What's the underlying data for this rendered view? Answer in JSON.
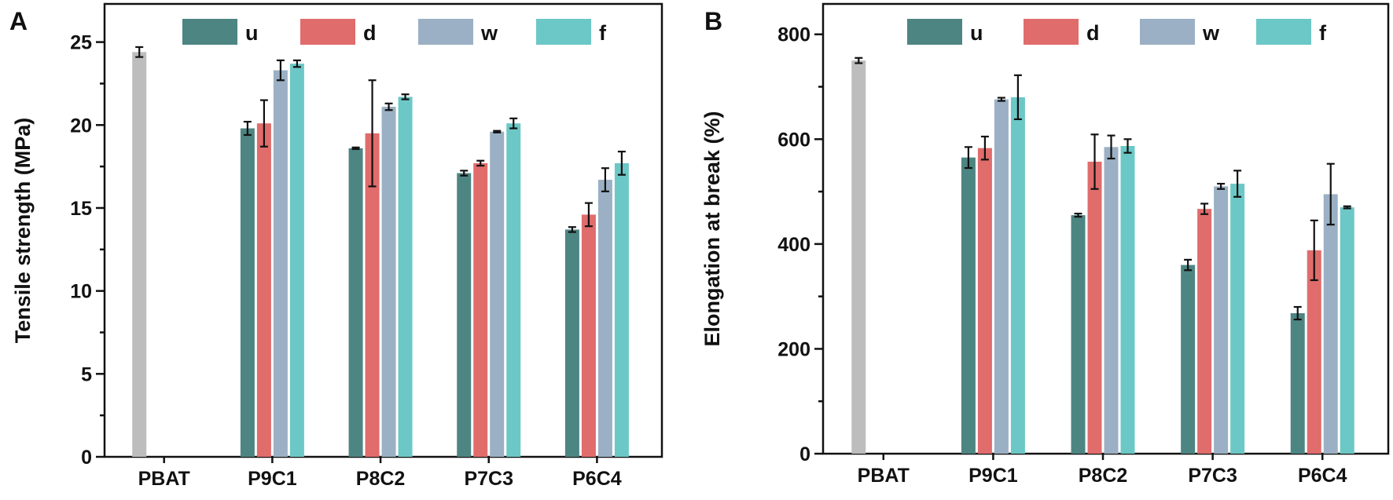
{
  "chart_data": [
    {
      "type": "bar",
      "panel_label": "A",
      "title": "",
      "xlabel": "",
      "ylabel": "Tensile strength (MPa)",
      "ylim": [
        0,
        27.3
      ],
      "yticks": [
        0,
        5,
        10,
        15,
        20,
        25
      ],
      "ytick_labels": [
        "0",
        "5",
        "10",
        "15",
        "20",
        "25"
      ],
      "categories": [
        "PBAT",
        "P9C1",
        "P8C2",
        "P7C3",
        "P6C4"
      ],
      "legend": {
        "placement": "top-center",
        "entries": [
          "u",
          "d",
          "w",
          "f"
        ]
      },
      "reference": {
        "name": "PBAT",
        "value": 24.4,
        "error": 0.3,
        "color": "#bdbdbd"
      },
      "series": [
        {
          "name": "u",
          "color": "#4d8582",
          "values": [
            null,
            19.8,
            18.6,
            17.1,
            13.7
          ],
          "errors": [
            null,
            0.4,
            0.05,
            0.15,
            0.15
          ]
        },
        {
          "name": "d",
          "color": "#e06c6c",
          "values": [
            null,
            20.1,
            19.5,
            17.7,
            14.6
          ],
          "errors": [
            null,
            1.4,
            3.2,
            0.15,
            0.7
          ]
        },
        {
          "name": "w",
          "color": "#9bb0c4",
          "values": [
            null,
            23.3,
            21.1,
            19.6,
            16.7
          ],
          "errors": [
            null,
            0.6,
            0.2,
            0.05,
            0.7
          ]
        },
        {
          "name": "f",
          "color": "#6cc8c6",
          "values": [
            null,
            23.7,
            21.7,
            20.1,
            17.7
          ],
          "errors": [
            null,
            0.2,
            0.15,
            0.3,
            0.7
          ]
        }
      ]
    },
    {
      "type": "bar",
      "panel_label": "B",
      "title": "",
      "xlabel": "",
      "ylabel": "Elongation at break (%)",
      "ylim": [
        0,
        858
      ],
      "yticks": [
        0,
        200,
        400,
        600,
        800
      ],
      "ytick_labels": [
        "0",
        "200",
        "400",
        "600",
        "800"
      ],
      "minor_yticks": [
        100,
        300,
        500,
        700
      ],
      "categories": [
        "PBAT",
        "P9C1",
        "P8C2",
        "P7C3",
        "P6C4"
      ],
      "legend": {
        "placement": "top-center",
        "entries": [
          "u",
          "d",
          "w",
          "f"
        ]
      },
      "reference": {
        "name": "PBAT",
        "value": 750,
        "error": 5,
        "color": "#bdbdbd"
      },
      "series": [
        {
          "name": "u",
          "color": "#4d8582",
          "values": [
            null,
            565,
            455,
            360,
            268
          ],
          "errors": [
            null,
            20,
            3,
            10,
            12
          ]
        },
        {
          "name": "d",
          "color": "#e06c6c",
          "values": [
            null,
            583,
            557,
            467,
            388
          ],
          "errors": [
            null,
            22,
            52,
            10,
            57
          ]
        },
        {
          "name": "w",
          "color": "#9bb0c4",
          "values": [
            null,
            676,
            585,
            510,
            495
          ],
          "errors": [
            null,
            3,
            22,
            5,
            58
          ]
        },
        {
          "name": "f",
          "color": "#6cc8c6",
          "values": [
            null,
            680,
            587,
            515,
            470
          ],
          "errors": [
            null,
            42,
            13,
            25,
            2
          ]
        }
      ]
    }
  ]
}
